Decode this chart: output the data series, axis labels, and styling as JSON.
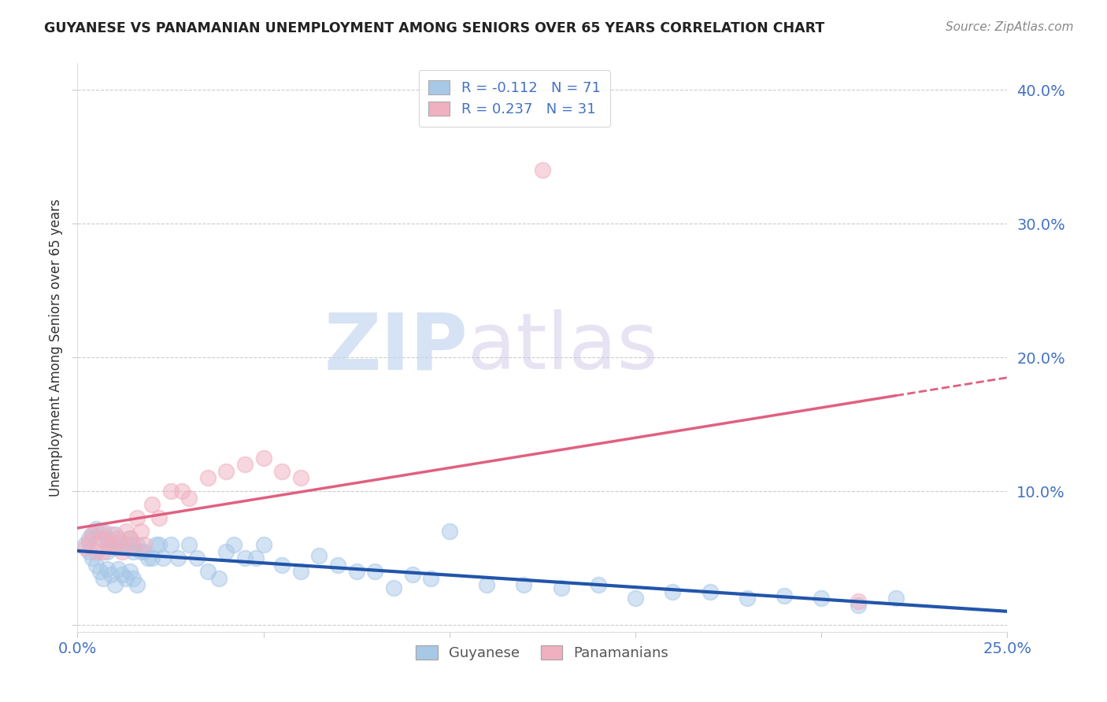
{
  "title": "GUYANESE VS PANAMANIAN UNEMPLOYMENT AMONG SENIORS OVER 65 YEARS CORRELATION CHART",
  "source": "Source: ZipAtlas.com",
  "ylabel": "Unemployment Among Seniors over 65 years",
  "xlim": [
    0.0,
    0.25
  ],
  "ylim": [
    -0.005,
    0.42
  ],
  "xticks": [
    0.0,
    0.05,
    0.1,
    0.15,
    0.2,
    0.25
  ],
  "yticks": [
    0.0,
    0.1,
    0.2,
    0.3,
    0.4
  ],
  "xtick_labels": [
    "0.0%",
    "",
    "",
    "",
    "",
    "25.0%"
  ],
  "ytick_labels": [
    "",
    "10.0%",
    "20.0%",
    "30.0%",
    "40.0%"
  ],
  "guyanese_color": "#a8c8e8",
  "panamanian_color": "#f0b0c0",
  "guyanese_line_color": "#2255aa",
  "panamanian_line_color": "#e06080",
  "guyanese_R": -0.112,
  "guyanese_N": 71,
  "panamanian_R": 0.237,
  "panamanian_N": 31,
  "watermark_zip": "ZIP",
  "watermark_atlas": "atlas",
  "legend_label_guyanese": "Guyanese",
  "legend_label_panamanian": "Panamanians",
  "guyanese_x": [
    0.002,
    0.003,
    0.003,
    0.004,
    0.004,
    0.005,
    0.005,
    0.006,
    0.006,
    0.007,
    0.007,
    0.008,
    0.008,
    0.008,
    0.009,
    0.009,
    0.01,
    0.01,
    0.01,
    0.011,
    0.011,
    0.012,
    0.012,
    0.013,
    0.013,
    0.014,
    0.014,
    0.015,
    0.015,
    0.016,
    0.016,
    0.017,
    0.018,
    0.019,
    0.02,
    0.021,
    0.022,
    0.023,
    0.025,
    0.027,
    0.03,
    0.032,
    0.035,
    0.038,
    0.04,
    0.042,
    0.045,
    0.048,
    0.05,
    0.055,
    0.06,
    0.065,
    0.07,
    0.075,
    0.08,
    0.085,
    0.09,
    0.095,
    0.1,
    0.11,
    0.12,
    0.13,
    0.14,
    0.15,
    0.16,
    0.17,
    0.18,
    0.19,
    0.2,
    0.21,
    0.22
  ],
  "guyanese_y": [
    0.06,
    0.065,
    0.055,
    0.068,
    0.05,
    0.072,
    0.045,
    0.065,
    0.04,
    0.07,
    0.035,
    0.065,
    0.055,
    0.042,
    0.06,
    0.038,
    0.068,
    0.058,
    0.03,
    0.062,
    0.042,
    0.058,
    0.038,
    0.06,
    0.035,
    0.065,
    0.04,
    0.055,
    0.035,
    0.06,
    0.03,
    0.055,
    0.055,
    0.05,
    0.05,
    0.06,
    0.06,
    0.05,
    0.06,
    0.05,
    0.06,
    0.05,
    0.04,
    0.035,
    0.055,
    0.06,
    0.05,
    0.05,
    0.06,
    0.045,
    0.04,
    0.052,
    0.045,
    0.04,
    0.04,
    0.028,
    0.038,
    0.035,
    0.07,
    0.03,
    0.03,
    0.028,
    0.03,
    0.02,
    0.025,
    0.025,
    0.02,
    0.022,
    0.02,
    0.015,
    0.02
  ],
  "panamanian_x": [
    0.002,
    0.003,
    0.004,
    0.005,
    0.006,
    0.007,
    0.007,
    0.008,
    0.009,
    0.01,
    0.011,
    0.012,
    0.013,
    0.014,
    0.015,
    0.016,
    0.017,
    0.018,
    0.02,
    0.022,
    0.025,
    0.028,
    0.03,
    0.035,
    0.04,
    0.045,
    0.05,
    0.055,
    0.06,
    0.125,
    0.21
  ],
  "panamanian_y": [
    0.058,
    0.062,
    0.068,
    0.055,
    0.07,
    0.055,
    0.065,
    0.06,
    0.068,
    0.06,
    0.065,
    0.055,
    0.07,
    0.065,
    0.06,
    0.08,
    0.07,
    0.06,
    0.09,
    0.08,
    0.1,
    0.1,
    0.095,
    0.11,
    0.115,
    0.12,
    0.125,
    0.115,
    0.11,
    0.34,
    0.018
  ]
}
